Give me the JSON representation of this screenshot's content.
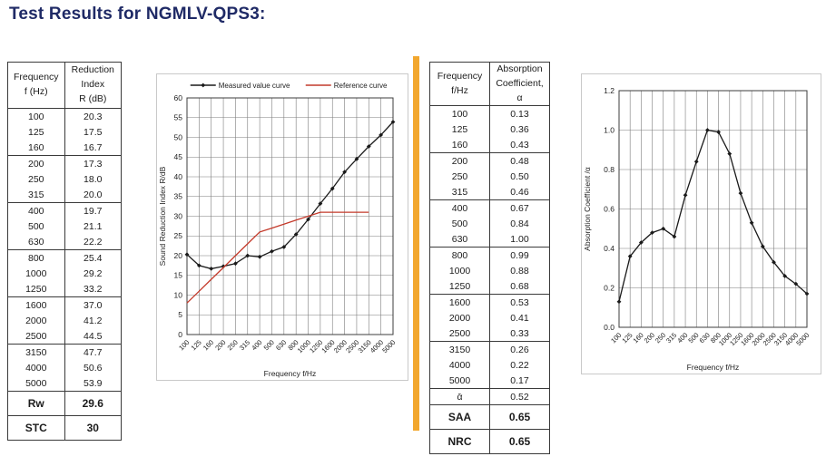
{
  "page": {
    "title": "Test Results for NGMLV-QPS3:"
  },
  "colors": {
    "title": "#1f2a66",
    "divider_orange": "#f2a72e",
    "measured_curve": "#1a1a1a",
    "reference_curve": "#c43a2b",
    "grid": "#7d7d7d",
    "plot_border": "#3c3c3c"
  },
  "reduction_table": {
    "headers": [
      [
        "Frequency",
        "f (Hz)"
      ],
      [
        "Reduction",
        "Index",
        "R (dB)"
      ]
    ],
    "rows": [
      [
        "100",
        "20.3"
      ],
      [
        "125",
        "17.5"
      ],
      [
        "160",
        "16.7"
      ],
      [
        "200",
        "17.3"
      ],
      [
        "250",
        "18.0"
      ],
      [
        "315",
        "20.0"
      ],
      [
        "400",
        "19.7"
      ],
      [
        "500",
        "21.1"
      ],
      [
        "630",
        "22.2"
      ],
      [
        "800",
        "25.4"
      ],
      [
        "1000",
        "29.2"
      ],
      [
        "1250",
        "33.2"
      ],
      [
        "1600",
        "37.0"
      ],
      [
        "2000",
        "41.2"
      ],
      [
        "2500",
        "44.5"
      ],
      [
        "3150",
        "47.7"
      ],
      [
        "4000",
        "50.6"
      ],
      [
        "5000",
        "53.9"
      ]
    ],
    "summary_rows": [
      [
        "Rw",
        "29.6"
      ],
      [
        "STC",
        "30"
      ]
    ]
  },
  "absorption_table": {
    "headers": [
      [
        "Frequency",
        "f/Hz"
      ],
      [
        "Absorption",
        "Coefficient, α"
      ]
    ],
    "rows": [
      [
        "100",
        "0.13"
      ],
      [
        "125",
        "0.36"
      ],
      [
        "160",
        "0.43"
      ],
      [
        "200",
        "0.48"
      ],
      [
        "250",
        "0.50"
      ],
      [
        "315",
        "0.46"
      ],
      [
        "400",
        "0.67"
      ],
      [
        "500",
        "0.84"
      ],
      [
        "630",
        "1.00"
      ],
      [
        "800",
        "0.99"
      ],
      [
        "1000",
        "0.88"
      ],
      [
        "1250",
        "0.68"
      ],
      [
        "1600",
        "0.53"
      ],
      [
        "2000",
        "0.41"
      ],
      [
        "2500",
        "0.33"
      ],
      [
        "3150",
        "0.26"
      ],
      [
        "4000",
        "0.22"
      ],
      [
        "5000",
        "0.17"
      ],
      [
        "ᾱ",
        "0.52"
      ]
    ],
    "summary_rows": [
      [
        "SAA",
        "0.65"
      ],
      [
        "NRC",
        "0.65"
      ]
    ]
  },
  "chart_data": [
    {
      "type": "line",
      "categories": [
        "100",
        "125",
        "160",
        "200",
        "250",
        "315",
        "400",
        "500",
        "630",
        "800",
        "1000",
        "1250",
        "1600",
        "2000",
        "2500",
        "3150",
        "4000",
        "5000"
      ],
      "series": [
        {
          "name": "Measured value curve",
          "color": "#1a1a1a",
          "marker": "diamond",
          "values": [
            20.3,
            17.5,
            16.7,
            17.3,
            18.0,
            20.0,
            19.7,
            21.1,
            22.2,
            25.4,
            29.2,
            33.2,
            37.0,
            41.2,
            44.5,
            47.7,
            50.6,
            53.9
          ]
        },
        {
          "name": "Reference curve",
          "color": "#c43a2b",
          "marker": "none",
          "values": [
            8,
            11,
            14,
            17,
            20,
            23,
            26,
            27,
            28,
            29,
            30,
            31,
            31,
            31,
            31,
            31,
            null,
            null
          ]
        }
      ],
      "title": "",
      "xlabel": "Frequency f/Hz",
      "ylabel": "Sound Reduction Index R/dB",
      "ylim": [
        0,
        60
      ],
      "ystep": 5,
      "ydecimals": 0,
      "grid": "both",
      "legend_position": "top"
    },
    {
      "type": "line",
      "categories": [
        "100",
        "125",
        "160",
        "200",
        "250",
        "315",
        "400",
        "500",
        "630",
        "800",
        "1000",
        "1250",
        "1600",
        "2000",
        "2500",
        "3150",
        "4000",
        "5000"
      ],
      "series": [
        {
          "name": "Absorption coefficient",
          "color": "#1a1a1a",
          "marker": "diamond",
          "values": [
            0.13,
            0.36,
            0.43,
            0.48,
            0.5,
            0.46,
            0.67,
            0.84,
            1.0,
            0.99,
            0.88,
            0.68,
            0.53,
            0.41,
            0.33,
            0.26,
            0.22,
            0.17
          ]
        }
      ],
      "title": "",
      "xlabel": "Frequency f/Hz",
      "ylabel": "Absorption Coefficient /α",
      "ylim": [
        0,
        1.2
      ],
      "ystep": 0.2,
      "ydecimals": 1,
      "grid": "both",
      "legend_position": "none"
    }
  ]
}
